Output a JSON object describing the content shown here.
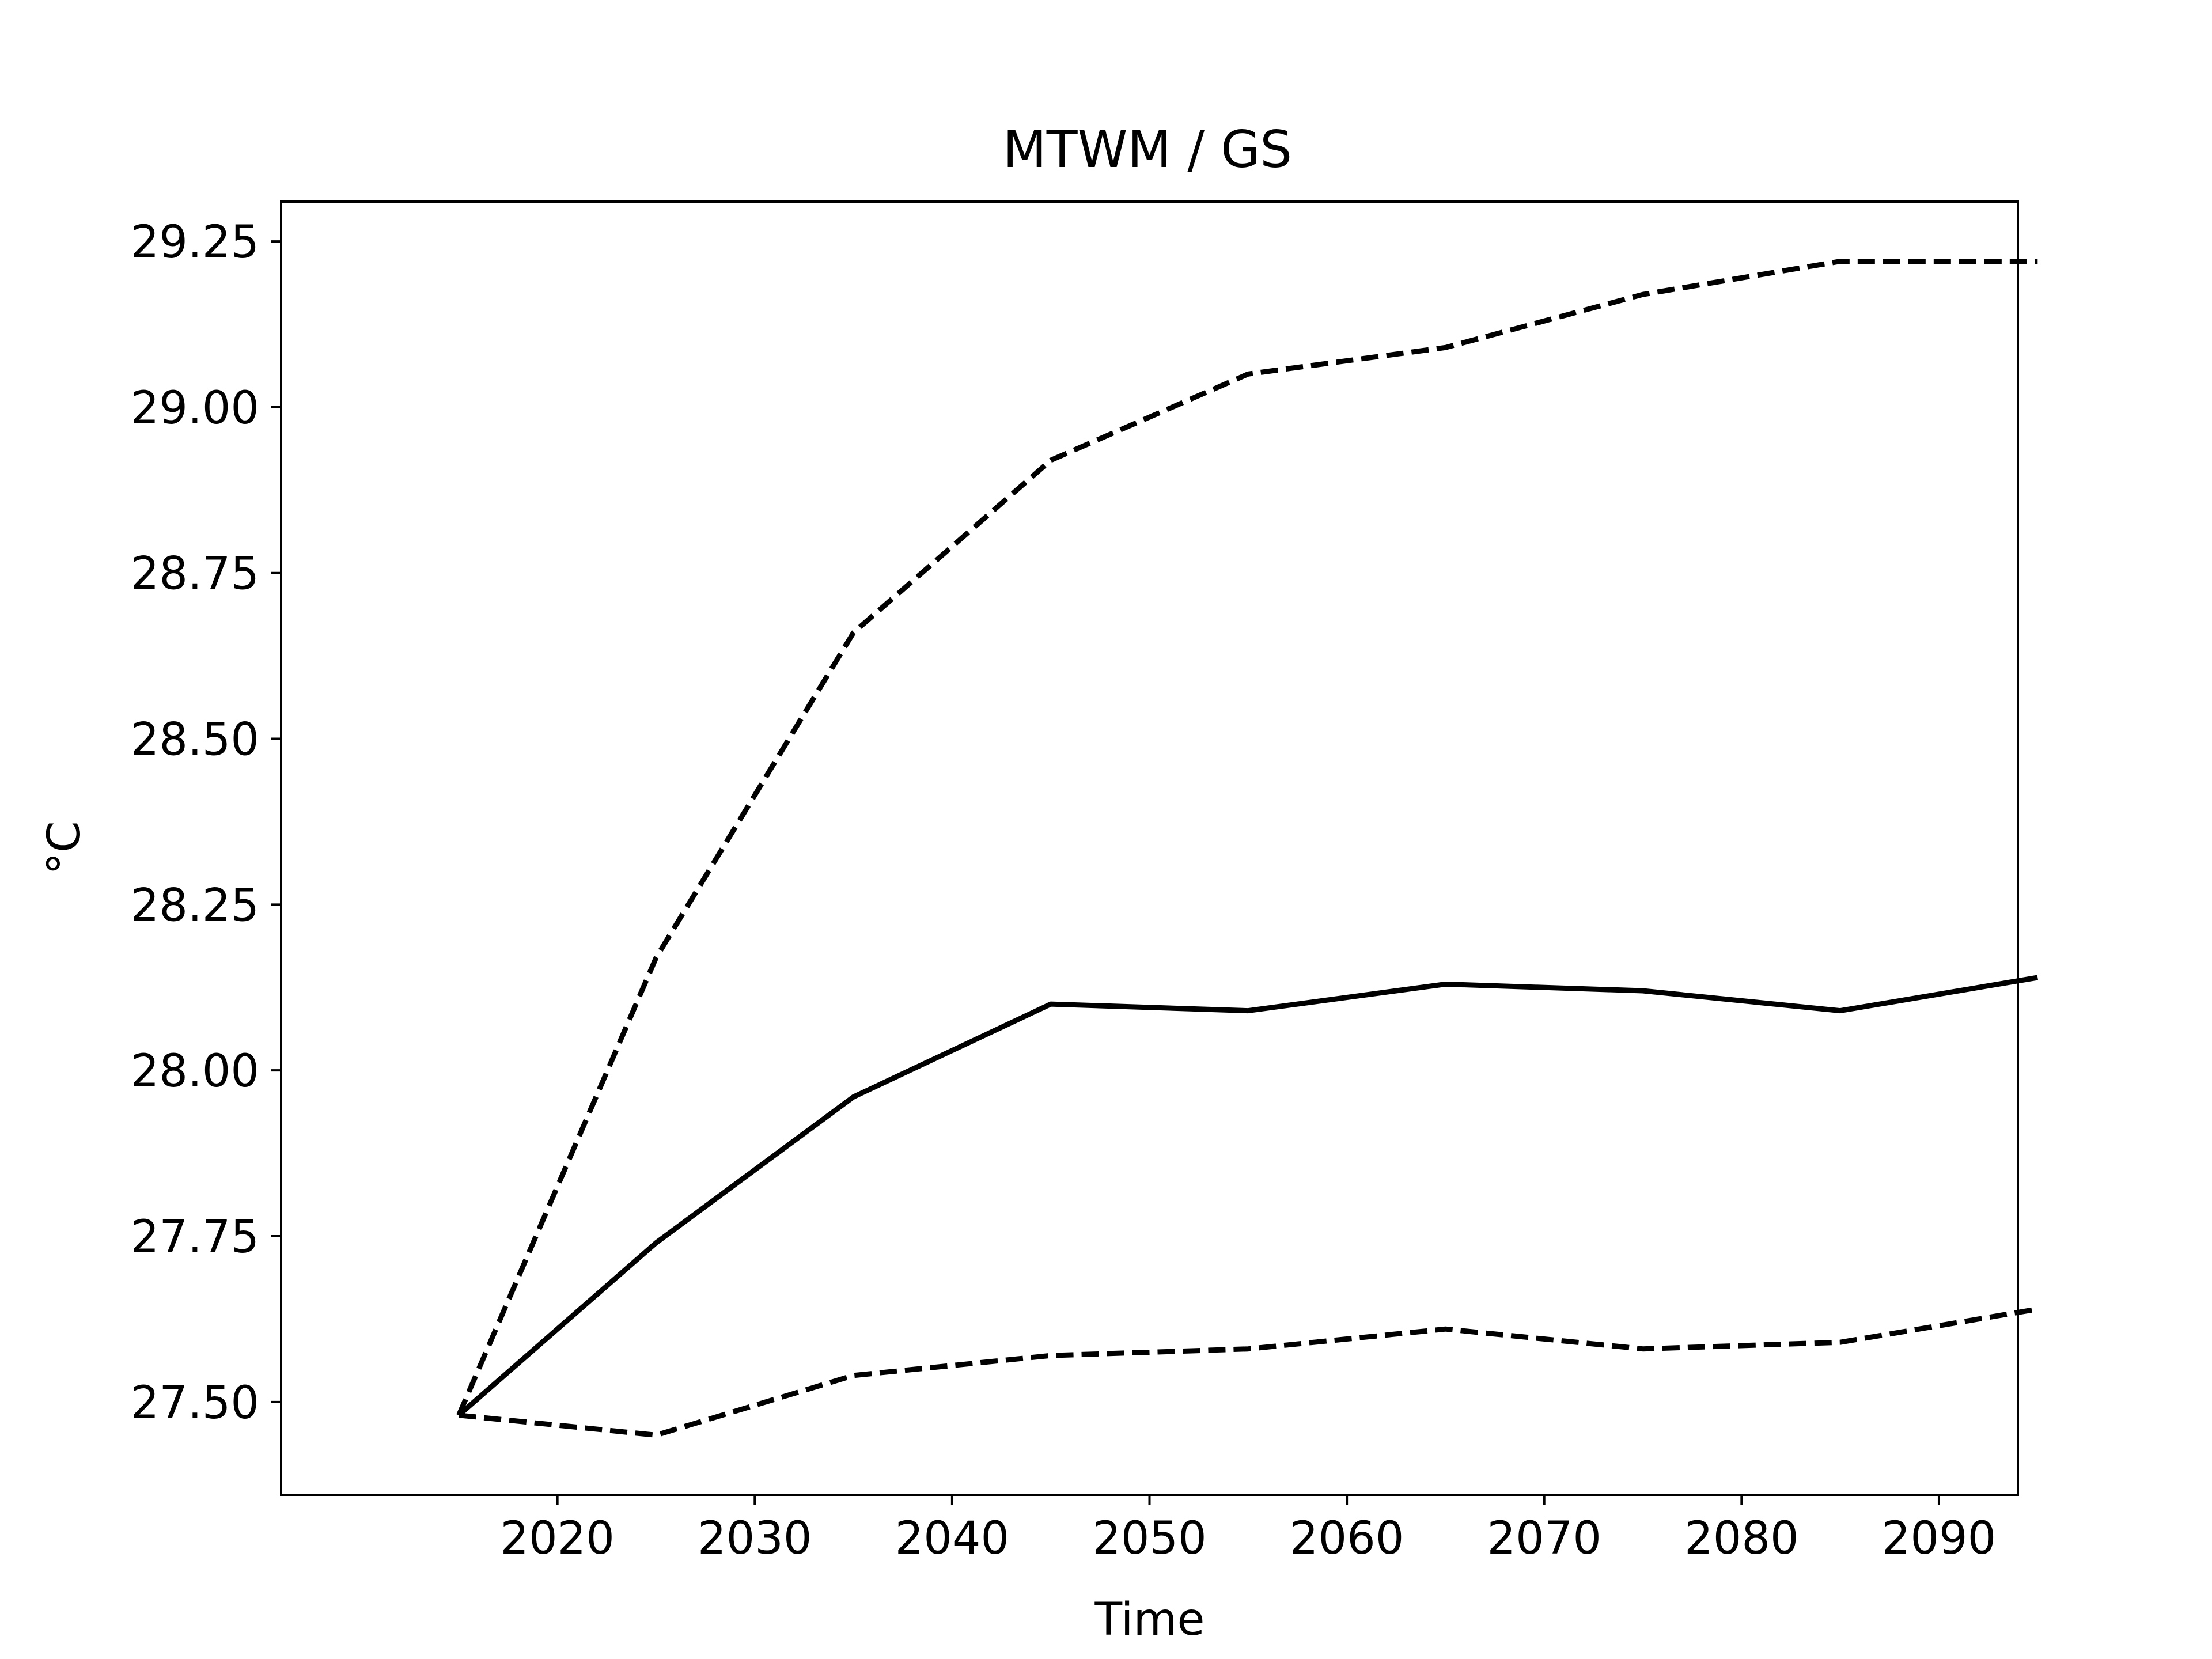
{
  "chart_data": {
    "type": "line",
    "title": "MTWM / GS",
    "xlabel": "Time",
    "ylabel": "°C",
    "x": [
      2015,
      2025,
      2035,
      2045,
      2055,
      2065,
      2075,
      2085,
      2095
    ],
    "series": [
      {
        "values": [
          27.48,
          28.17,
          28.66,
          28.92,
          29.05,
          29.09,
          29.17,
          29.22,
          29.22
        ],
        "style": "dashed"
      },
      {
        "values": [
          27.48,
          27.74,
          27.96,
          28.1,
          28.09,
          28.13,
          28.12,
          28.09,
          28.14
        ],
        "style": "solid"
      },
      {
        "values": [
          27.48,
          27.45,
          27.54,
          27.57,
          27.58,
          27.61,
          27.58,
          27.59,
          27.64
        ],
        "style": "dashed"
      }
    ],
    "xlim": [
      2006,
      2094
    ],
    "ylim": [
      27.36,
      29.31
    ],
    "xticks": [
      2020,
      2030,
      2040,
      2050,
      2060,
      2070,
      2080,
      2090
    ],
    "xtick_labels": [
      "2020",
      "2030",
      "2040",
      "2050",
      "2060",
      "2070",
      "2080",
      "2090"
    ],
    "yticks": [
      27.5,
      27.75,
      28.0,
      28.25,
      28.5,
      28.75,
      29.0,
      29.25
    ],
    "ytick_labels": [
      "27.50",
      "27.75",
      "28.00",
      "28.25",
      "28.50",
      "28.75",
      "29.00",
      "29.25"
    ],
    "grid": false,
    "line_color": "#000000"
  }
}
